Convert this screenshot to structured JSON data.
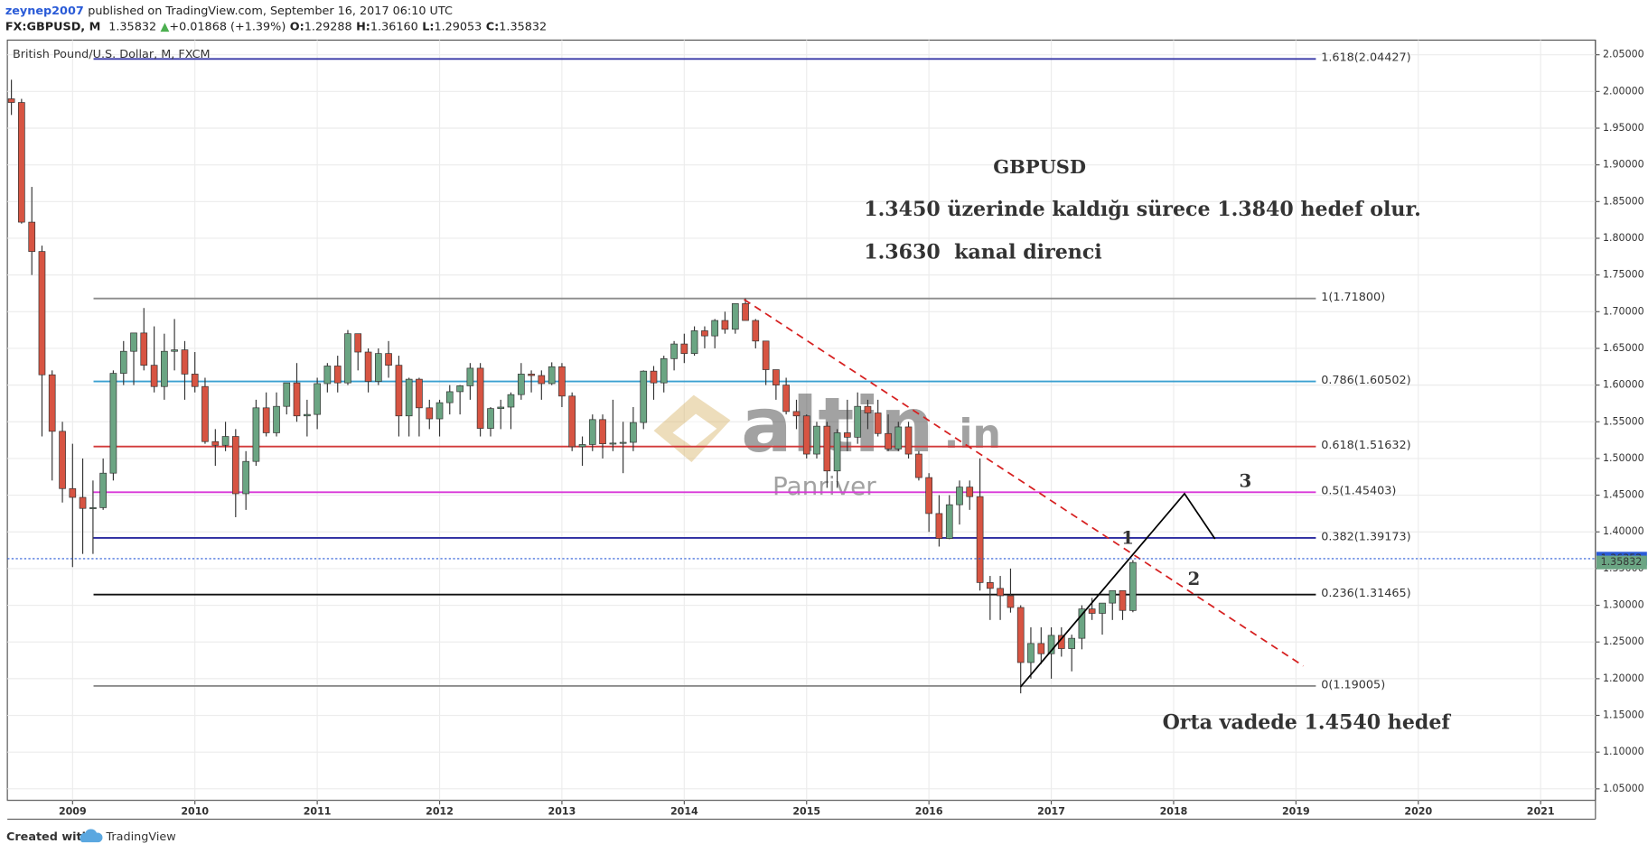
{
  "header": {
    "user": "zeynep2007",
    "published": "published on TradingView.com, September 16, 2017 06:10 UTC",
    "symbol": "FX:GBPUSD, M",
    "price": "1.35832",
    "arrow": "▲",
    "change": "+0.01868 (+1.39%)",
    "ohlc": [
      "O:",
      "1.29288",
      "H:",
      "1.36160",
      "L:",
      "1.29053",
      "C:",
      "1.35832"
    ]
  },
  "footer": {
    "created": "Created with",
    "brand": "TradingView"
  },
  "chart_data": {
    "type": "candlestick",
    "title": "British Pound/U.S. Dollar, M, FXCM",
    "up_color": "#6ba583",
    "down_color": "#d75442",
    "xlim": [
      2008.467,
      2021.448
    ],
    "xticks": [
      2009,
      2010,
      2011,
      2012,
      2013,
      2014,
      2015,
      2016,
      2017,
      2018,
      2019,
      2020,
      2021
    ],
    "ylim": [
      1.0343,
      2.07
    ],
    "yticks": [
      {
        "value": 1.05,
        "label": "1.05000"
      },
      {
        "value": 1.1,
        "label": "1.10000"
      },
      {
        "value": 1.15,
        "label": "1.15000"
      },
      {
        "value": 1.2,
        "label": "1.20000"
      },
      {
        "value": 1.25,
        "label": "1.25000"
      },
      {
        "value": 1.3,
        "label": "1.30000"
      },
      {
        "value": 1.35,
        "label": "1.35000"
      },
      {
        "value": 1.4,
        "label": "1.40000"
      },
      {
        "value": 1.45,
        "label": "1.45000"
      },
      {
        "value": 1.5,
        "label": "1.50000"
      },
      {
        "value": 1.55,
        "label": "1.55000"
      },
      {
        "value": 1.6,
        "label": "1.60000"
      },
      {
        "value": 1.65,
        "label": "1.65000"
      },
      {
        "value": 1.7,
        "label": "1.70000"
      },
      {
        "value": 1.75,
        "label": "1.75000"
      },
      {
        "value": 1.8,
        "label": "1.80000"
      },
      {
        "value": 1.85,
        "label": "1.85000"
      },
      {
        "value": 1.9,
        "label": "1.90000"
      },
      {
        "value": 1.95,
        "label": "1.95000"
      },
      {
        "value": 2.0,
        "label": "2.00000"
      },
      {
        "value": 2.05,
        "label": "2.05000"
      }
    ],
    "grid": true,
    "x": [
      2008.5,
      2008.583,
      2008.667,
      2008.75,
      2008.833,
      2008.917,
      2009.0,
      2009.083,
      2009.167,
      2009.25,
      2009.333,
      2009.417,
      2009.5,
      2009.583,
      2009.667,
      2009.75,
      2009.833,
      2009.917,
      2010.0,
      2010.083,
      2010.167,
      2010.25,
      2010.333,
      2010.417,
      2010.5,
      2010.583,
      2010.667,
      2010.75,
      2010.833,
      2010.917,
      2011.0,
      2011.083,
      2011.167,
      2011.25,
      2011.333,
      2011.417,
      2011.5,
      2011.583,
      2011.667,
      2011.75,
      2011.833,
      2011.917,
      2012.0,
      2012.083,
      2012.167,
      2012.25,
      2012.333,
      2012.417,
      2012.5,
      2012.583,
      2012.667,
      2012.75,
      2012.833,
      2012.917,
      2013.0,
      2013.083,
      2013.167,
      2013.25,
      2013.333,
      2013.417,
      2013.5,
      2013.583,
      2013.667,
      2013.75,
      2013.833,
      2013.917,
      2014.0,
      2014.083,
      2014.167,
      2014.25,
      2014.333,
      2014.417,
      2014.5,
      2014.583,
      2014.667,
      2014.75,
      2014.833,
      2014.917,
      2015.0,
      2015.083,
      2015.167,
      2015.25,
      2015.333,
      2015.417,
      2015.5,
      2015.583,
      2015.667,
      2015.75,
      2015.833,
      2015.917,
      2016.0,
      2016.083,
      2016.167,
      2016.25,
      2016.333,
      2016.417,
      2016.5,
      2016.583,
      2016.667,
      2016.75,
      2016.833,
      2016.917,
      2017.0,
      2017.083,
      2017.167,
      2017.25,
      2017.333,
      2017.417,
      2017.5,
      2017.583,
      2017.667
    ],
    "open": [
      1.99,
      1.985,
      1.822,
      1.782,
      1.614,
      1.537,
      1.459,
      1.447,
      1.432,
      1.433,
      1.48,
      1.616,
      1.646,
      1.671,
      1.627,
      1.598,
      1.646,
      1.648,
      1.615,
      1.598,
      1.523,
      1.518,
      1.53,
      1.452,
      1.496,
      1.569,
      1.535,
      1.571,
      1.603,
      1.558,
      1.56,
      1.602,
      1.626,
      1.603,
      1.67,
      1.645,
      1.605,
      1.643,
      1.627,
      1.558,
      1.608,
      1.569,
      1.554,
      1.576,
      1.591,
      1.599,
      1.623,
      1.541,
      1.568,
      1.57,
      1.587,
      1.615,
      1.613,
      1.602,
      1.625,
      1.585,
      1.516,
      1.519,
      1.553,
      1.52,
      1.521,
      1.522,
      1.549,
      1.619,
      1.603,
      1.636,
      1.656,
      1.643,
      1.674,
      1.667,
      1.688,
      1.676,
      1.711,
      1.688,
      1.66,
      1.621,
      1.6,
      1.564,
      1.558,
      1.506,
      1.544,
      1.483,
      1.535,
      1.529,
      1.571,
      1.562,
      1.534,
      1.513,
      1.543,
      1.506,
      1.474,
      1.425,
      1.391,
      1.437,
      1.461,
      1.448,
      1.331,
      1.323,
      1.313,
      1.297,
      1.222,
      1.248,
      1.234,
      1.259,
      1.241,
      1.255,
      1.295,
      1.289,
      1.303,
      1.32,
      1.29288
    ],
    "high": [
      2.016,
      1.99,
      1.87,
      1.79,
      1.62,
      1.55,
      1.52,
      1.5,
      1.47,
      1.5,
      1.62,
      1.66,
      1.67,
      1.705,
      1.68,
      1.67,
      1.69,
      1.66,
      1.645,
      1.61,
      1.54,
      1.55,
      1.54,
      1.51,
      1.58,
      1.59,
      1.59,
      1.6,
      1.63,
      1.58,
      1.61,
      1.63,
      1.64,
      1.675,
      1.67,
      1.65,
      1.65,
      1.66,
      1.64,
      1.61,
      1.61,
      1.58,
      1.58,
      1.6,
      1.6,
      1.63,
      1.63,
      1.57,
      1.58,
      1.59,
      1.63,
      1.62,
      1.62,
      1.631,
      1.63,
      1.59,
      1.53,
      1.56,
      1.56,
      1.58,
      1.55,
      1.57,
      1.62,
      1.626,
      1.64,
      1.66,
      1.67,
      1.68,
      1.68,
      1.69,
      1.7,
      1.711,
      1.718,
      1.69,
      1.66,
      1.62,
      1.61,
      1.58,
      1.56,
      1.55,
      1.55,
      1.54,
      1.58,
      1.59,
      1.58,
      1.58,
      1.56,
      1.55,
      1.55,
      1.51,
      1.48,
      1.45,
      1.45,
      1.47,
      1.47,
      1.5,
      1.34,
      1.34,
      1.35,
      1.3,
      1.27,
      1.27,
      1.27,
      1.27,
      1.26,
      1.3,
      1.31,
      1.3,
      1.32,
      1.32,
      1.3616
    ],
    "low": [
      1.968,
      1.82,
      1.75,
      1.53,
      1.47,
      1.44,
      1.352,
      1.37,
      1.37,
      1.43,
      1.47,
      1.6,
      1.6,
      1.62,
      1.59,
      1.58,
      1.62,
      1.58,
      1.59,
      1.52,
      1.49,
      1.51,
      1.42,
      1.43,
      1.49,
      1.53,
      1.53,
      1.56,
      1.55,
      1.53,
      1.54,
      1.59,
      1.59,
      1.6,
      1.62,
      1.59,
      1.6,
      1.61,
      1.53,
      1.53,
      1.53,
      1.54,
      1.53,
      1.56,
      1.56,
      1.58,
      1.53,
      1.53,
      1.54,
      1.54,
      1.58,
      1.59,
      1.58,
      1.6,
      1.57,
      1.51,
      1.49,
      1.51,
      1.5,
      1.51,
      1.48,
      1.51,
      1.54,
      1.58,
      1.59,
      1.62,
      1.63,
      1.64,
      1.65,
      1.65,
      1.67,
      1.67,
      1.69,
      1.65,
      1.6,
      1.58,
      1.56,
      1.54,
      1.5,
      1.5,
      1.46,
      1.46,
      1.51,
      1.52,
      1.54,
      1.53,
      1.51,
      1.51,
      1.5,
      1.47,
      1.4,
      1.38,
      1.39,
      1.41,
      1.43,
      1.32,
      1.28,
      1.28,
      1.29,
      1.18,
      1.2,
      1.22,
      1.2,
      1.23,
      1.21,
      1.24,
      1.28,
      1.26,
      1.28,
      1.28,
      1.29053
    ],
    "close": [
      1.985,
      1.822,
      1.782,
      1.614,
      1.537,
      1.459,
      1.447,
      1.432,
      1.433,
      1.48,
      1.616,
      1.646,
      1.671,
      1.627,
      1.598,
      1.646,
      1.648,
      1.615,
      1.598,
      1.523,
      1.518,
      1.53,
      1.452,
      1.496,
      1.569,
      1.535,
      1.571,
      1.603,
      1.558,
      1.56,
      1.602,
      1.626,
      1.603,
      1.67,
      1.645,
      1.605,
      1.643,
      1.627,
      1.558,
      1.608,
      1.569,
      1.554,
      1.576,
      1.591,
      1.599,
      1.623,
      1.541,
      1.568,
      1.57,
      1.587,
      1.615,
      1.613,
      1.602,
      1.625,
      1.585,
      1.516,
      1.519,
      1.553,
      1.52,
      1.521,
      1.522,
      1.549,
      1.619,
      1.603,
      1.636,
      1.656,
      1.643,
      1.674,
      1.667,
      1.688,
      1.676,
      1.711,
      1.688,
      1.66,
      1.621,
      1.6,
      1.564,
      1.558,
      1.506,
      1.544,
      1.483,
      1.535,
      1.529,
      1.571,
      1.562,
      1.534,
      1.513,
      1.543,
      1.506,
      1.474,
      1.425,
      1.391,
      1.437,
      1.461,
      1.448,
      1.331,
      1.323,
      1.313,
      1.297,
      1.222,
      1.248,
      1.234,
      1.259,
      1.241,
      1.255,
      1.295,
      1.289,
      1.303,
      1.32,
      1.293,
      1.35832
    ],
    "levels": [
      {
        "value": 2.04427,
        "label": "1.618(2.04427)",
        "color": "#3a3aa8"
      },
      {
        "value": 1.718,
        "label": "1(1.71800)",
        "color": "#8c8c8c"
      },
      {
        "value": 1.60502,
        "label": "0.786(1.60502)",
        "color": "#3aa0d0"
      },
      {
        "value": 1.51632,
        "label": "0.618(1.51632)",
        "color": "#d23a3a"
      },
      {
        "value": 1.45403,
        "label": "0.5(1.45403)",
        "color": "#d838d8"
      },
      {
        "value": 1.39173,
        "label": "0.382(1.39173)",
        "color": "#2a2aa0"
      },
      {
        "value": 1.31465,
        "label": "0.236(1.31465)",
        "color": "#111111"
      },
      {
        "value": 1.19005,
        "label": "0(1.19005)",
        "color": "#8c8c8c"
      }
    ],
    "price_lines": [
      {
        "value": 1.36352,
        "color": "#2a5bd7"
      },
      {
        "value": 1.35832,
        "color": "#6ba583"
      }
    ],
    "annotations": {
      "symbol": "GBPUSD",
      "line1": "1.3450 üzerinde kaldığı sürece 1.3840 hedef olur.",
      "line2": "1.3630  kanal direnci",
      "target": "Orta vadede 1.4540 hedef",
      "wave1": "1",
      "wave2": "2",
      "wave3": "3"
    },
    "watermark": {
      "brand": "altin",
      "tld": ".in",
      "sub": "Panriver"
    }
  }
}
